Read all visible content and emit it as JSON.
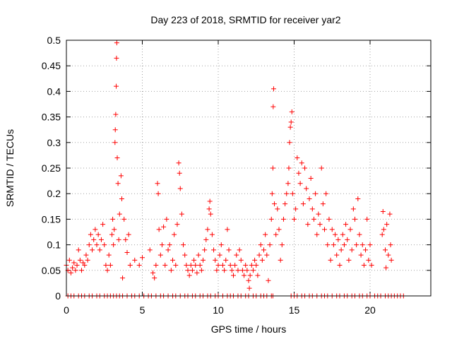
{
  "chart_data": {
    "type": "scatter",
    "title": "Day 223 of 2018, SRMTID for receiver yar2",
    "xlabel": "GPS time / hours",
    "ylabel": "SRMTID / TECUs",
    "xlim": [
      0,
      24
    ],
    "ylim": [
      0,
      0.5
    ],
    "xticks": [
      0,
      5,
      10,
      15,
      20
    ],
    "yticks": [
      0,
      0.05,
      0.1,
      0.15,
      0.2,
      0.25,
      0.3,
      0.35,
      0.4,
      0.45,
      0.5
    ],
    "xtick_labels": [
      "0",
      "5",
      "10",
      "15",
      "20"
    ],
    "ytick_labels": [
      "0",
      "0.05",
      "0.1",
      "0.15",
      "0.2",
      "0.25",
      "0.3",
      "0.35",
      "0.4",
      "0.45",
      "0.5"
    ],
    "grid": true,
    "marker": "+",
    "color": "#ff0000",
    "series": [
      {
        "name": "SRMTID",
        "points": [
          [
            0.0,
            0.06
          ],
          [
            0.1,
            0.05
          ],
          [
            0.2,
            0.07
          ],
          [
            0.3,
            0.045
          ],
          [
            0.4,
            0.055
          ],
          [
            0.5,
            0.065
          ],
          [
            0.6,
            0.05
          ],
          [
            0.7,
            0.06
          ],
          [
            0.8,
            0.09
          ],
          [
            0.9,
            0.07
          ],
          [
            1.0,
            0.05
          ],
          [
            1.1,
            0.065
          ],
          [
            1.2,
            0.06
          ],
          [
            1.3,
            0.08
          ],
          [
            1.4,
            0.07
          ],
          [
            1.5,
            0.1
          ],
          [
            1.6,
            0.12
          ],
          [
            1.7,
            0.09
          ],
          [
            1.8,
            0.11
          ],
          [
            1.9,
            0.13
          ],
          [
            2.0,
            0.1
          ],
          [
            2.1,
            0.12
          ],
          [
            2.2,
            0.09
          ],
          [
            2.3,
            0.11
          ],
          [
            2.4,
            0.14
          ],
          [
            2.5,
            0.1
          ],
          [
            2.6,
            0.06
          ],
          [
            2.7,
            0.05
          ],
          [
            2.8,
            0.08
          ],
          [
            2.9,
            0.06
          ],
          [
            3.0,
            0.12
          ],
          [
            3.05,
            0.15
          ],
          [
            3.1,
            0.1
          ],
          [
            3.15,
            0.13
          ],
          [
            3.2,
            0.3
          ],
          [
            3.22,
            0.325
          ],
          [
            3.25,
            0.355
          ],
          [
            3.28,
            0.41
          ],
          [
            3.3,
            0.465
          ],
          [
            3.32,
            0.495
          ],
          [
            3.35,
            0.27
          ],
          [
            3.4,
            0.22
          ],
          [
            3.45,
            0.11
          ],
          [
            3.5,
            0.16
          ],
          [
            3.6,
            0.235
          ],
          [
            3.65,
            0.19
          ],
          [
            3.7,
            0.035
          ],
          [
            3.8,
            0.15
          ],
          [
            3.9,
            0.11
          ],
          [
            4.0,
            0.085
          ],
          [
            4.1,
            0.12
          ],
          [
            4.2,
            0.06
          ],
          [
            4.5,
            0.07
          ],
          [
            4.8,
            0.06
          ],
          [
            5.0,
            0.075
          ],
          [
            5.5,
            0.09
          ],
          [
            5.7,
            0.045
          ],
          [
            5.8,
            0.035
          ],
          [
            5.9,
            0.06
          ],
          [
            6.0,
            0.22
          ],
          [
            6.05,
            0.2
          ],
          [
            6.1,
            0.13
          ],
          [
            6.2,
            0.08
          ],
          [
            6.3,
            0.1
          ],
          [
            6.4,
            0.135
          ],
          [
            6.5,
            0.06
          ],
          [
            6.6,
            0.15
          ],
          [
            6.7,
            0.09
          ],
          [
            6.8,
            0.1
          ],
          [
            6.9,
            0.05
          ],
          [
            7.0,
            0.07
          ],
          [
            7.1,
            0.12
          ],
          [
            7.2,
            0.06
          ],
          [
            7.3,
            0.14
          ],
          [
            7.4,
            0.26
          ],
          [
            7.45,
            0.24
          ],
          [
            7.5,
            0.21
          ],
          [
            7.6,
            0.16
          ],
          [
            7.7,
            0.1
          ],
          [
            7.8,
            0.08
          ],
          [
            7.9,
            0.06
          ],
          [
            8.0,
            0.05
          ],
          [
            8.1,
            0.04
          ],
          [
            8.2,
            0.06
          ],
          [
            8.3,
            0.05
          ],
          [
            8.4,
            0.07
          ],
          [
            8.5,
            0.06
          ],
          [
            8.6,
            0.045
          ],
          [
            8.7,
            0.08
          ],
          [
            8.8,
            0.06
          ],
          [
            8.9,
            0.05
          ],
          [
            9.0,
            0.07
          ],
          [
            9.1,
            0.09
          ],
          [
            9.2,
            0.11
          ],
          [
            9.3,
            0.13
          ],
          [
            9.4,
            0.17
          ],
          [
            9.45,
            0.185
          ],
          [
            9.5,
            0.16
          ],
          [
            9.6,
            0.12
          ],
          [
            9.7,
            0.09
          ],
          [
            9.8,
            0.07
          ],
          [
            9.9,
            0.05
          ],
          [
            10.0,
            0.06
          ],
          [
            10.1,
            0.08
          ],
          [
            10.2,
            0.1
          ],
          [
            10.3,
            0.06
          ],
          [
            10.4,
            0.05
          ],
          [
            10.5,
            0.07
          ],
          [
            10.6,
            0.13
          ],
          [
            10.7,
            0.09
          ],
          [
            10.8,
            0.06
          ],
          [
            10.9,
            0.05
          ],
          [
            11.0,
            0.04
          ],
          [
            11.1,
            0.06
          ],
          [
            11.2,
            0.08
          ],
          [
            11.3,
            0.05
          ],
          [
            11.4,
            0.09
          ],
          [
            11.5,
            0.07
          ],
          [
            11.6,
            0.05
          ],
          [
            11.7,
            0.04
          ],
          [
            11.8,
            0.06
          ],
          [
            11.9,
            0.05
          ],
          [
            12.0,
            0.03
          ],
          [
            12.05,
            0.015
          ],
          [
            12.1,
            0.04
          ],
          [
            12.2,
            0.06
          ],
          [
            12.3,
            0.05
          ],
          [
            12.4,
            0.07
          ],
          [
            12.5,
            0.06
          ],
          [
            12.6,
            0.04
          ],
          [
            12.7,
            0.08
          ],
          [
            12.8,
            0.1
          ],
          [
            12.9,
            0.07
          ],
          [
            13.0,
            0.09
          ],
          [
            13.1,
            0.12
          ],
          [
            13.2,
            0.08
          ],
          [
            13.3,
            0.03
          ],
          [
            13.4,
            0.1
          ],
          [
            13.5,
            0.15
          ],
          [
            13.55,
            0.2
          ],
          [
            13.6,
            0.25
          ],
          [
            13.62,
            0.37
          ],
          [
            13.65,
            0.405
          ],
          [
            13.7,
            0.18
          ],
          [
            13.8,
            0.12
          ],
          [
            13.9,
            0.17
          ],
          [
            14.0,
            0.13
          ],
          [
            14.1,
            0.07
          ],
          [
            14.2,
            0.1
          ],
          [
            14.3,
            0.15
          ],
          [
            14.4,
            0.18
          ],
          [
            14.5,
            0.2
          ],
          [
            14.6,
            0.22
          ],
          [
            14.65,
            0.25
          ],
          [
            14.7,
            0.3
          ],
          [
            14.75,
            0.33
          ],
          [
            14.8,
            0.34
          ],
          [
            14.85,
            0.36
          ],
          [
            14.9,
            0.2
          ],
          [
            15.0,
            0.15
          ],
          [
            15.1,
            0.17
          ],
          [
            15.2,
            0.27
          ],
          [
            15.3,
            0.24
          ],
          [
            15.4,
            0.22
          ],
          [
            15.5,
            0.26
          ],
          [
            15.6,
            0.18
          ],
          [
            15.7,
            0.25
          ],
          [
            15.8,
            0.21
          ],
          [
            15.9,
            0.14
          ],
          [
            16.0,
            0.19
          ],
          [
            16.1,
            0.23
          ],
          [
            16.2,
            0.17
          ],
          [
            16.3,
            0.15
          ],
          [
            16.4,
            0.2
          ],
          [
            16.5,
            0.12
          ],
          [
            16.6,
            0.16
          ],
          [
            16.7,
            0.14
          ],
          [
            16.8,
            0.25
          ],
          [
            16.9,
            0.18
          ],
          [
            17.0,
            0.13
          ],
          [
            17.1,
            0.2
          ],
          [
            17.2,
            0.1
          ],
          [
            17.3,
            0.15
          ],
          [
            17.4,
            0.07
          ],
          [
            17.5,
            0.13
          ],
          [
            17.6,
            0.1
          ],
          [
            17.7,
            0.12
          ],
          [
            17.8,
            0.08
          ],
          [
            17.9,
            0.11
          ],
          [
            18.0,
            0.06
          ],
          [
            18.1,
            0.09
          ],
          [
            18.2,
            0.12
          ],
          [
            18.3,
            0.1
          ],
          [
            18.4,
            0.14
          ],
          [
            18.5,
            0.11
          ],
          [
            18.6,
            0.07
          ],
          [
            18.7,
            0.13
          ],
          [
            18.8,
            0.09
          ],
          [
            18.9,
            0.17
          ],
          [
            19.0,
            0.15
          ],
          [
            19.1,
            0.1
          ],
          [
            19.2,
            0.19
          ],
          [
            19.3,
            0.12
          ],
          [
            19.4,
            0.08
          ],
          [
            19.5,
            0.1
          ],
          [
            19.6,
            0.06
          ],
          [
            19.7,
            0.09
          ],
          [
            19.8,
            0.15
          ],
          [
            19.9,
            0.07
          ],
          [
            20.0,
            0.1
          ],
          [
            20.1,
            0.06
          ],
          [
            20.8,
            0.12
          ],
          [
            20.85,
            0.165
          ],
          [
            20.9,
            0.13
          ],
          [
            21.0,
            0.09
          ],
          [
            21.05,
            0.055
          ],
          [
            21.1,
            0.14
          ],
          [
            21.2,
            0.08
          ],
          [
            21.3,
            0.16
          ],
          [
            21.35,
            0.1
          ],
          [
            21.4,
            0.07
          ]
        ],
        "zero_x": [
          0.1,
          0.3,
          0.5,
          0.8,
          1.0,
          1.2,
          1.5,
          1.7,
          2.0,
          2.2,
          2.5,
          2.7,
          2.9,
          3.1,
          3.3,
          3.5,
          3.7,
          4.0,
          4.3,
          4.5,
          4.8,
          5.1,
          5.4,
          5.6,
          5.9,
          6.2,
          6.4,
          6.7,
          7.0,
          7.2,
          7.5,
          7.8,
          8.0,
          8.3,
          8.5,
          8.8,
          9.0,
          9.3,
          9.5,
          9.8,
          10.0,
          10.3,
          10.6,
          10.8,
          11.0,
          11.3,
          11.5,
          11.8,
          12.0,
          12.3,
          12.5,
          12.8,
          13.0,
          13.2,
          13.5,
          13.6,
          14.8,
          15.0,
          15.2,
          15.5,
          15.7,
          16.0,
          16.2,
          16.5,
          16.8,
          17.0,
          17.2,
          17.5,
          17.8,
          18.0,
          18.3,
          18.5,
          18.8,
          19.0,
          19.3,
          19.5,
          19.8,
          20.0,
          20.3,
          20.5,
          20.7,
          21.0,
          21.2,
          21.4,
          21.6,
          21.8,
          22.0,
          22.2
        ]
      }
    ]
  }
}
